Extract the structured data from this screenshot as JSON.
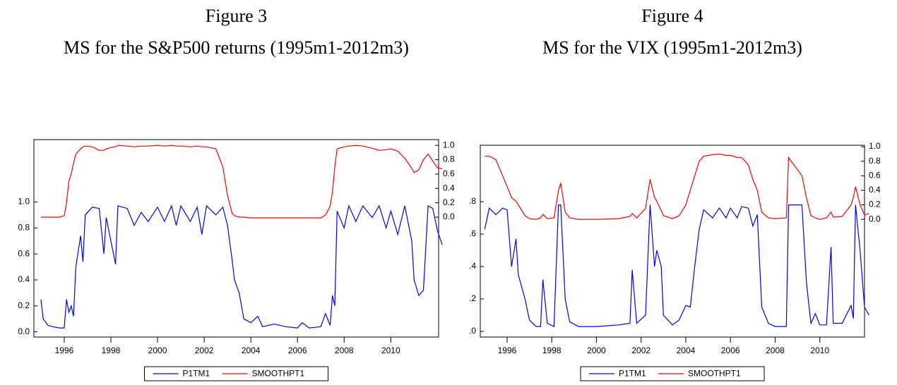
{
  "chart_data": [
    {
      "type": "line",
      "title": "Figure 3",
      "subtitle": "MS for the S&P500 returns (1995m1-2012m3)",
      "x": [
        1995.0,
        1995.1,
        1995.3,
        1995.5,
        1995.8,
        1996.0,
        1996.1,
        1996.2,
        1996.3,
        1996.4,
        1996.5,
        1996.7,
        1996.8,
        1996.9,
        1997.2,
        1997.5,
        1997.7,
        1997.8,
        1998.0,
        1998.2,
        1998.3,
        1998.7,
        1999.0,
        1999.3,
        1999.6,
        2000.0,
        2000.3,
        2000.6,
        2000.8,
        2001.0,
        2001.4,
        2001.7,
        2001.9,
        2002.1,
        2002.5,
        2002.8,
        2003.0,
        2003.2,
        2003.3,
        2003.5,
        2003.7,
        2004.0,
        2004.3,
        2004.5,
        2005.0,
        2005.5,
        2006.0,
        2006.2,
        2006.5,
        2007.0,
        2007.2,
        2007.4,
        2007.5,
        2007.6,
        2007.7,
        2008.0,
        2008.2,
        2008.5,
        2008.8,
        2009.2,
        2009.5,
        2009.8,
        2010.0,
        2010.3,
        2010.6,
        2010.9,
        2011.0,
        2011.2,
        2011.4,
        2011.6,
        2011.8,
        2012.0,
        2012.2
      ],
      "series": [
        {
          "name": "P1TM1",
          "color": "#0000ff",
          "values": [
            0.25,
            0.1,
            0.05,
            0.04,
            0.03,
            0.03,
            0.25,
            0.15,
            0.2,
            0.12,
            0.5,
            0.74,
            0.54,
            0.9,
            0.96,
            0.95,
            0.6,
            0.88,
            0.7,
            0.52,
            0.97,
            0.95,
            0.82,
            0.92,
            0.85,
            0.96,
            0.85,
            0.97,
            0.82,
            0.97,
            0.85,
            0.96,
            0.75,
            0.97,
            0.9,
            0.96,
            0.82,
            0.55,
            0.4,
            0.3,
            0.1,
            0.07,
            0.12,
            0.04,
            0.06,
            0.04,
            0.03,
            0.07,
            0.03,
            0.04,
            0.14,
            0.05,
            0.28,
            0.2,
            0.93,
            0.8,
            0.97,
            0.85,
            0.97,
            0.88,
            0.97,
            0.8,
            0.93,
            0.75,
            0.97,
            0.7,
            0.4,
            0.28,
            0.32,
            0.97,
            0.95,
            0.78,
            0.67
          ]
        },
        {
          "name": "SMOOTHPT1",
          "color": "#ff0000",
          "axis": "y2",
          "values": [
            0,
            0,
            0,
            0,
            0,
            0.02,
            0.2,
            0.5,
            0.6,
            0.75,
            0.88,
            0.95,
            0.98,
            0.99,
            0.98,
            0.93,
            0.93,
            0.95,
            0.97,
            0.98,
            1,
            0.99,
            0.98,
            0.99,
            0.99,
            1,
            0.99,
            1,
            0.99,
            0.99,
            0.98,
            0.99,
            0.98,
            0.98,
            0.95,
            0.7,
            0.3,
            0.05,
            0.02,
            0,
            0,
            -0.01,
            -0.01,
            -0.01,
            -0.01,
            -0.01,
            -0.01,
            -0.01,
            -0.01,
            -0.01,
            0.03,
            0.15,
            0.35,
            0.7,
            0.95,
            0.98,
            0.99,
            1,
            0.99,
            0.96,
            0.93,
            0.94,
            0.95,
            0.92,
            0.82,
            0.68,
            0.62,
            0.66,
            0.8,
            0.88,
            0.78,
            0.69,
            0.67
          ]
        }
      ],
      "xlim": [
        1994.7,
        2012.05
      ],
      "xticks": [
        1996,
        1998,
        2000,
        2002,
        2004,
        2006,
        2008,
        2010
      ],
      "ylim": [
        -0.04,
        1.48
      ],
      "yticks": [
        {
          "value": 0,
          "label": "0.0"
        },
        0.2,
        0.4,
        0.6,
        0.8,
        {
          "value": 1,
          "label": "1.0"
        }
      ],
      "y2lim": [
        -1.67,
        1.08
      ],
      "y2ticks": [
        {
          "value": 0,
          "label": "0.0"
        },
        0.2,
        0.4,
        0.6,
        0.8,
        {
          "value": 1,
          "label": "1.0"
        }
      ],
      "legend": "bottom"
    },
    {
      "type": "line",
      "title": "Figure 4",
      "subtitle": "MS for the VIX (1995m1-2012m3)",
      "x": [
        1995.0,
        1995.2,
        1995.5,
        1995.8,
        1996.0,
        1996.2,
        1996.4,
        1996.5,
        1996.8,
        1997.0,
        1997.3,
        1997.5,
        1997.6,
        1997.8,
        1998.1,
        1998.3,
        1998.4,
        1998.6,
        1998.8,
        1999.2,
        2000.0,
        2001.0,
        2001.5,
        2001.6,
        2001.8,
        2002.2,
        2002.4,
        2002.6,
        2002.7,
        2002.9,
        2003.0,
        2003.4,
        2003.7,
        2004.0,
        2004.2,
        2004.4,
        2004.6,
        2004.8,
        2005.2,
        2005.5,
        2005.8,
        2006.0,
        2006.3,
        2006.5,
        2006.8,
        2007.0,
        2007.2,
        2007.4,
        2007.7,
        2008.0,
        2008.5,
        2008.6,
        2009.2,
        2009.4,
        2009.6,
        2009.8,
        2010.0,
        2010.3,
        2010.5,
        2010.6,
        2011.0,
        2011.4,
        2011.5,
        2011.6,
        2011.8,
        2012.0,
        2012.2
      ],
      "series": [
        {
          "name": "P1TM1",
          "color": "#0000ff",
          "values": [
            0.63,
            0.76,
            0.72,
            0.76,
            0.75,
            0.4,
            0.57,
            0.35,
            0.2,
            0.07,
            0.03,
            0.03,
            0.32,
            0.05,
            0.03,
            0.78,
            0.78,
            0.2,
            0.06,
            0.03,
            0.03,
            0.04,
            0.05,
            0.38,
            0.05,
            0.1,
            0.78,
            0.4,
            0.5,
            0.4,
            0.1,
            0.04,
            0.07,
            0.16,
            0.15,
            0.4,
            0.63,
            0.75,
            0.7,
            0.76,
            0.7,
            0.76,
            0.7,
            0.77,
            0.76,
            0.65,
            0.72,
            0.15,
            0.05,
            0.03,
            0.03,
            0.78,
            0.78,
            0.3,
            0.05,
            0.11,
            0.04,
            0.04,
            0.52,
            0.05,
            0.05,
            0.16,
            0.08,
            0.78,
            0.5,
            0.15,
            0.1
          ]
        },
        {
          "name": "SMOOTHPT1",
          "color": "#ff0000",
          "axis": "y2",
          "values": [
            0.87,
            0.87,
            0.82,
            0.6,
            0.45,
            0.3,
            0.25,
            0.2,
            0.05,
            0.01,
            0,
            0.02,
            0.07,
            0.01,
            0.02,
            0.4,
            0.5,
            0.1,
            0.02,
            0,
            0,
            0.01,
            0.04,
            0.08,
            0.02,
            0.15,
            0.55,
            0.3,
            0.25,
            0.12,
            0.05,
            0.01,
            0.05,
            0.2,
            0.4,
            0.6,
            0.8,
            0.87,
            0.89,
            0.9,
            0.88,
            0.88,
            0.85,
            0.85,
            0.75,
            0.55,
            0.4,
            0.1,
            0.02,
            0.01,
            0.02,
            0.85,
            0.6,
            0.3,
            0.05,
            0.02,
            0,
            0.02,
            0.1,
            0.03,
            0.04,
            0.2,
            0.3,
            0.45,
            0.2,
            0.06,
            0.08
          ]
        }
      ],
      "xlim": [
        1994.8,
        2012.0
      ],
      "xticks": [
        1996,
        1998,
        2000,
        2002,
        2004,
        2006,
        2008,
        2010
      ],
      "ylim": [
        -0.035,
        1.148
      ],
      "yticks": [
        {
          "value": 0,
          "label": ".0"
        },
        {
          "value": 0.2,
          "label": ".2"
        },
        {
          "value": 0.4,
          "label": ".4"
        },
        {
          "value": 0.6,
          "label": ".6"
        },
        {
          "value": 0.8,
          "label": ".8"
        }
      ],
      "y2lim": [
        -1.62,
        1.02
      ],
      "y2ticks": [
        {
          "value": 0,
          "label": "0.0"
        },
        0.2,
        0.4,
        0.6,
        0.8,
        {
          "value": 1,
          "label": "1.0"
        }
      ],
      "legend": "bottom"
    }
  ]
}
